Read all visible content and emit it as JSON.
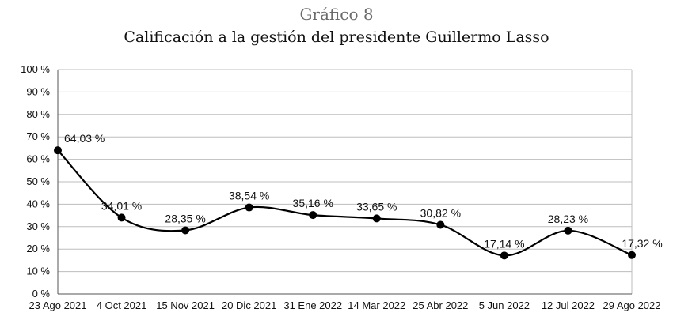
{
  "header": {
    "figure_label": "Gráfico 8",
    "title": "Calificación a la gestión del presidente Guillermo Lasso"
  },
  "chart_data": {
    "type": "line",
    "title": "Calificación a la gestión del presidente Guillermo Lasso",
    "categories": [
      "23 Ago 2021",
      "4 Oct 2021",
      "15 Nov 2021",
      "20 Dic 2021",
      "31 Ene 2022",
      "14 Mar 2022",
      "25 Abr 2022",
      "5 Jun 2022",
      "12 Jul 2022",
      "29 Ago 2022"
    ],
    "series": [
      {
        "values": [
          64.03,
          34.01,
          28.35,
          38.54,
          35.16,
          33.65,
          30.82,
          17.14,
          28.23,
          17.32
        ],
        "labels": [
          "64,03 %",
          "34,01 %",
          "28,35 %",
          "38,54 %",
          "35,16 %",
          "33,65 %",
          "30,82 %",
          "17,14 %",
          "28,23 %",
          "17,32 %"
        ]
      }
    ],
    "ylim": [
      0,
      100
    ],
    "yticks": [
      0,
      10,
      20,
      30,
      40,
      50,
      60,
      70,
      80,
      90,
      100
    ],
    "ytick_labels": [
      "0 %",
      "10 %",
      "20 %",
      "30 %",
      "40 %",
      "50 %",
      "60 %",
      "70 %",
      "80 %",
      "90 %",
      "100 %"
    ],
    "grid": true,
    "smooth": true,
    "colors": {
      "line": "#000000",
      "grid": "#bdbdbd",
      "axis": "#555555"
    }
  }
}
